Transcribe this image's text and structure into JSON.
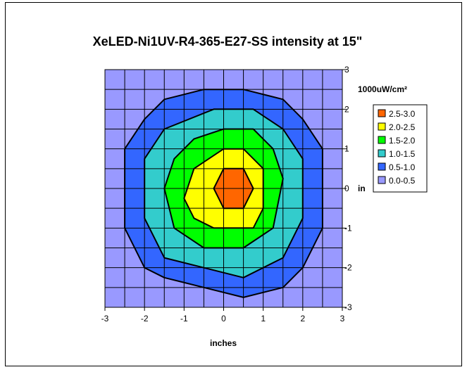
{
  "chart_data": {
    "type": "heatmap",
    "subtype": "contour",
    "title": "XeLED-Ni1UV-R4-365-E27-SS intensity at 15\"",
    "xlabel": "inches",
    "ylabel": "inches",
    "ylabel_shown": "in",
    "unit_label": "1000uW/cm²",
    "xlim": [
      -3,
      3
    ],
    "ylim": [
      -3,
      3
    ],
    "x_ticks": [
      "-3",
      "-2",
      "-1",
      "0",
      "1",
      "2",
      "3"
    ],
    "y_ticks": [
      "3",
      "2",
      "1",
      "0",
      "-1",
      "-2",
      "-3"
    ],
    "grid": true,
    "grid_cells": 12,
    "legend_position": "right",
    "levels": [
      {
        "label": "2.5-3.0",
        "color": "#ff6600"
      },
      {
        "label": "2.0-2.5",
        "color": "#ffff00"
      },
      {
        "label": "1.5-2.0",
        "color": "#00ff00"
      },
      {
        "label": "1.0-1.5",
        "color": "#33cccc"
      },
      {
        "label": "0.5-1.0",
        "color": "#3366ff"
      },
      {
        "label": "0.0-0.5",
        "color": "#9999ff"
      }
    ],
    "contours": [
      {
        "level": "0.5-1.0",
        "points": [
          [
            -0.5,
            2.5
          ],
          [
            0.5,
            2.5
          ],
          [
            1.5,
            2.25
          ],
          [
            2.0,
            1.75
          ],
          [
            2.5,
            1.0
          ],
          [
            2.5,
            -1.0
          ],
          [
            2.0,
            -2.0
          ],
          [
            1.5,
            -2.5
          ],
          [
            0.5,
            -2.75
          ],
          [
            -0.5,
            -2.5
          ],
          [
            -1.5,
            -2.25
          ],
          [
            -2.0,
            -2.0
          ],
          [
            -2.5,
            -1.0
          ],
          [
            -2.5,
            1.0
          ],
          [
            -2.0,
            1.75
          ],
          [
            -1.5,
            2.25
          ]
        ]
      },
      {
        "level": "1.0-1.5",
        "points": [
          [
            -0.25,
            2.0
          ],
          [
            0.75,
            2.0
          ],
          [
            1.5,
            1.5
          ],
          [
            2.0,
            0.75
          ],
          [
            2.0,
            -0.75
          ],
          [
            1.5,
            -1.75
          ],
          [
            0.5,
            -2.25
          ],
          [
            -0.5,
            -2.0
          ],
          [
            -1.5,
            -1.75
          ],
          [
            -2.0,
            -0.75
          ],
          [
            -2.0,
            0.75
          ],
          [
            -1.5,
            1.5
          ]
        ]
      },
      {
        "level": "1.5-2.0",
        "points": [
          [
            0.0,
            1.5
          ],
          [
            0.75,
            1.5
          ],
          [
            1.25,
            1.0
          ],
          [
            1.5,
            0.25
          ],
          [
            1.25,
            -1.0
          ],
          [
            0.5,
            -1.5
          ],
          [
            -0.5,
            -1.5
          ],
          [
            -1.25,
            -1.0
          ],
          [
            -1.5,
            0.0
          ],
          [
            -1.25,
            0.75
          ],
          [
            -0.75,
            1.25
          ]
        ]
      },
      {
        "level": "2.0-2.5",
        "points": [
          [
            0.0,
            1.0
          ],
          [
            0.5,
            1.0
          ],
          [
            1.0,
            0.5
          ],
          [
            1.0,
            -0.5
          ],
          [
            0.75,
            -1.0
          ],
          [
            -0.25,
            -1.0
          ],
          [
            -0.75,
            -0.75
          ],
          [
            -1.0,
            -0.25
          ],
          [
            -0.75,
            0.5
          ]
        ]
      },
      {
        "level": "2.5-3.0",
        "points": [
          [
            0.0,
            0.5
          ],
          [
            0.5,
            0.5
          ],
          [
            0.75,
            0.0
          ],
          [
            0.5,
            -0.5
          ],
          [
            0.0,
            -0.5
          ],
          [
            -0.25,
            0.0
          ]
        ]
      }
    ]
  }
}
